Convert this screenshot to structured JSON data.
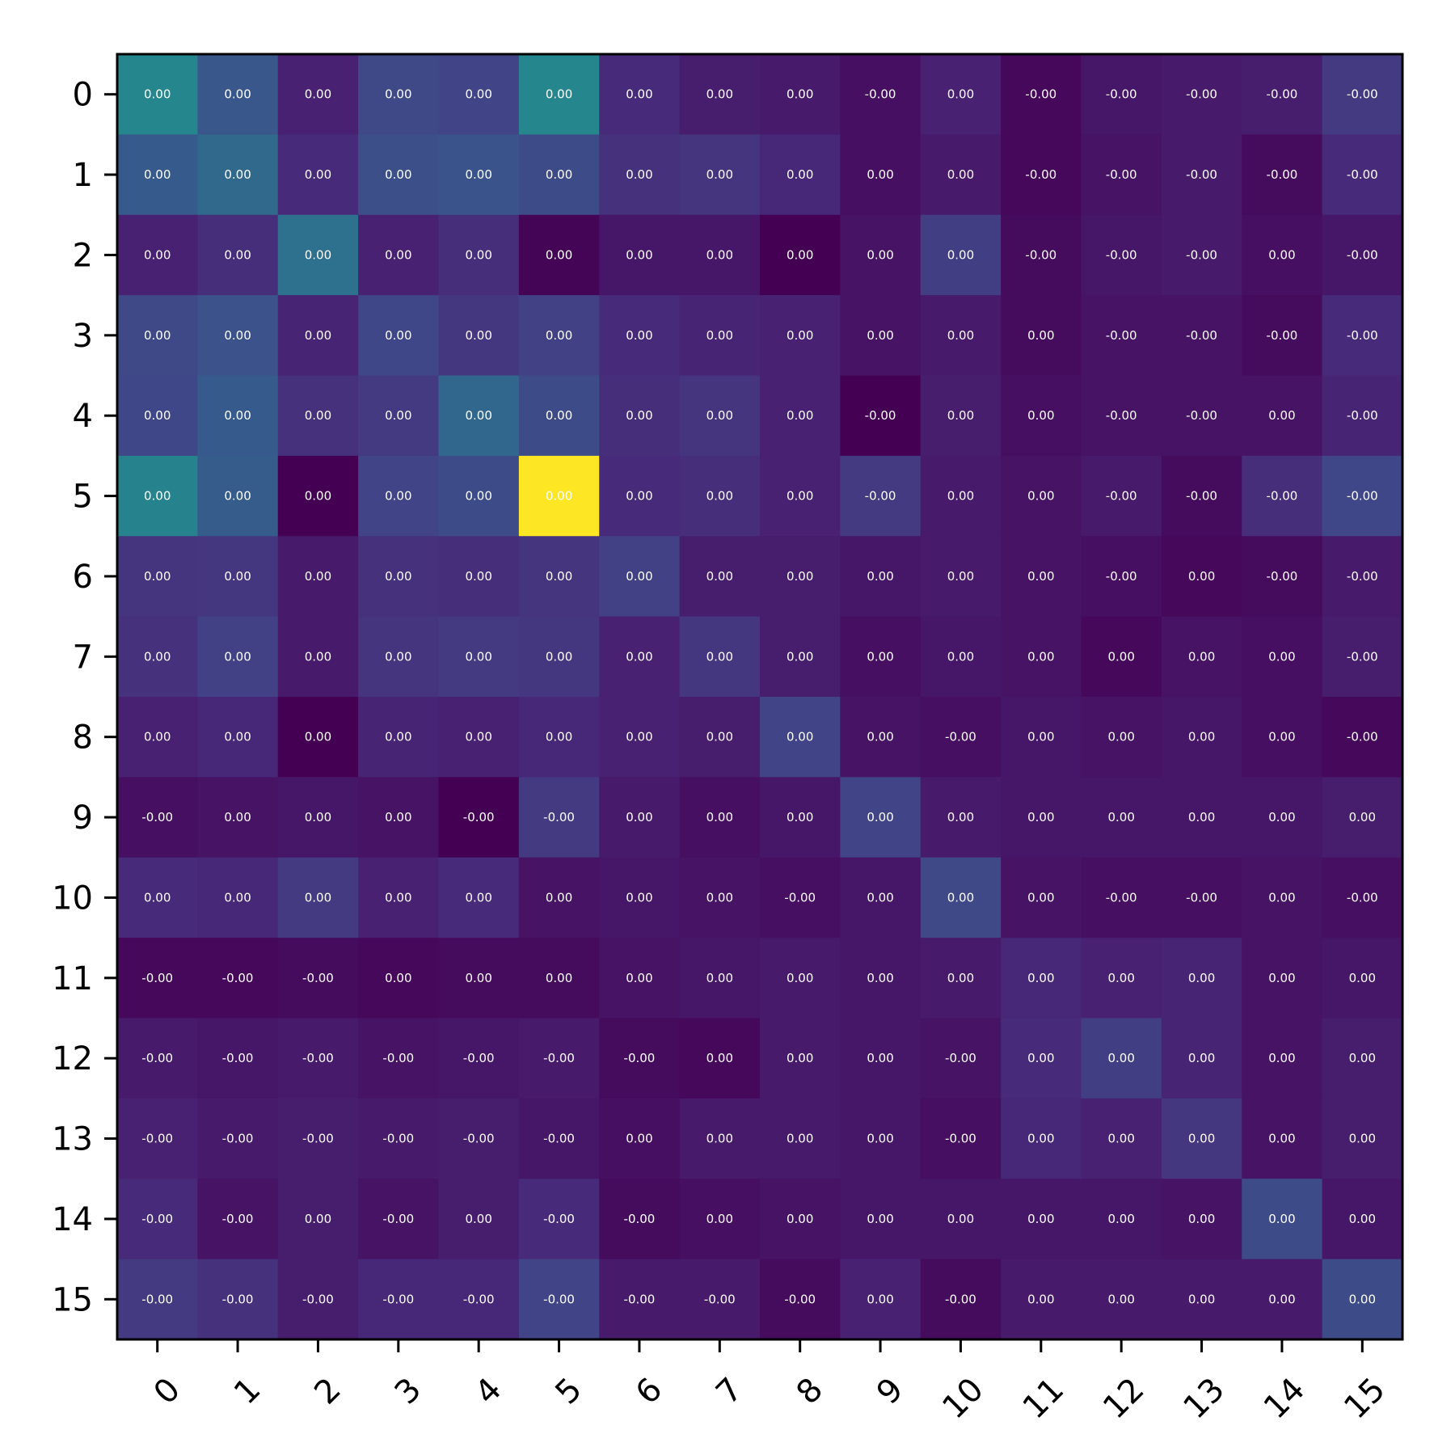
{
  "chart_data": {
    "type": "heatmap",
    "title": "",
    "xlabel": "",
    "ylabel": "",
    "grid": false,
    "colormap": "viridis",
    "x_categories": [
      "0",
      "1",
      "2",
      "3",
      "4",
      "5",
      "6",
      "7",
      "8",
      "9",
      "10",
      "11",
      "12",
      "13",
      "14",
      "15"
    ],
    "y_categories": [
      "0",
      "1",
      "2",
      "3",
      "4",
      "5",
      "6",
      "7",
      "8",
      "9",
      "10",
      "11",
      "12",
      "13",
      "14",
      "15"
    ],
    "intensity": [
      [
        0.46,
        0.27,
        0.09,
        0.22,
        0.2,
        0.46,
        0.12,
        0.08,
        0.07,
        0.04,
        0.09,
        0.02,
        0.06,
        0.07,
        0.08,
        0.17
      ],
      [
        0.28,
        0.34,
        0.12,
        0.24,
        0.26,
        0.23,
        0.14,
        0.15,
        0.11,
        0.04,
        0.07,
        0.02,
        0.05,
        0.07,
        0.03,
        0.12
      ],
      [
        0.09,
        0.13,
        0.37,
        0.09,
        0.13,
        0.01,
        0.06,
        0.06,
        0.0,
        0.05,
        0.18,
        0.03,
        0.06,
        0.07,
        0.04,
        0.06
      ],
      [
        0.22,
        0.25,
        0.1,
        0.21,
        0.16,
        0.19,
        0.12,
        0.1,
        0.09,
        0.05,
        0.07,
        0.03,
        0.05,
        0.05,
        0.03,
        0.12
      ],
      [
        0.21,
        0.28,
        0.14,
        0.17,
        0.33,
        0.23,
        0.13,
        0.15,
        0.09,
        0.0,
        0.08,
        0.04,
        0.05,
        0.05,
        0.05,
        0.1
      ],
      [
        0.44,
        0.29,
        0.0,
        0.2,
        0.23,
        1.0,
        0.12,
        0.13,
        0.09,
        0.17,
        0.07,
        0.05,
        0.07,
        0.03,
        0.13,
        0.21
      ],
      [
        0.15,
        0.16,
        0.07,
        0.14,
        0.13,
        0.15,
        0.19,
        0.08,
        0.08,
        0.06,
        0.07,
        0.05,
        0.04,
        0.02,
        0.03,
        0.07
      ],
      [
        0.14,
        0.19,
        0.07,
        0.15,
        0.17,
        0.16,
        0.09,
        0.16,
        0.08,
        0.04,
        0.06,
        0.05,
        0.02,
        0.05,
        0.04,
        0.08
      ],
      [
        0.09,
        0.11,
        0.0,
        0.1,
        0.09,
        0.11,
        0.09,
        0.08,
        0.2,
        0.05,
        0.04,
        0.06,
        0.05,
        0.06,
        0.04,
        0.02
      ],
      [
        0.04,
        0.05,
        0.06,
        0.05,
        0.0,
        0.17,
        0.07,
        0.04,
        0.06,
        0.2,
        0.07,
        0.06,
        0.06,
        0.06,
        0.06,
        0.08
      ],
      [
        0.12,
        0.11,
        0.17,
        0.09,
        0.12,
        0.05,
        0.06,
        0.05,
        0.04,
        0.06,
        0.22,
        0.05,
        0.04,
        0.04,
        0.05,
        0.04
      ],
      [
        0.02,
        0.02,
        0.03,
        0.02,
        0.03,
        0.03,
        0.05,
        0.06,
        0.07,
        0.06,
        0.07,
        0.11,
        0.09,
        0.1,
        0.05,
        0.06
      ],
      [
        0.07,
        0.06,
        0.07,
        0.05,
        0.06,
        0.07,
        0.03,
        0.02,
        0.07,
        0.06,
        0.05,
        0.12,
        0.18,
        0.1,
        0.05,
        0.08
      ],
      [
        0.09,
        0.07,
        0.08,
        0.07,
        0.08,
        0.06,
        0.04,
        0.07,
        0.07,
        0.06,
        0.04,
        0.11,
        0.09,
        0.16,
        0.05,
        0.08
      ],
      [
        0.12,
        0.05,
        0.08,
        0.05,
        0.08,
        0.12,
        0.03,
        0.04,
        0.05,
        0.06,
        0.06,
        0.06,
        0.06,
        0.05,
        0.23,
        0.06
      ],
      [
        0.17,
        0.14,
        0.08,
        0.11,
        0.11,
        0.2,
        0.07,
        0.07,
        0.03,
        0.09,
        0.03,
        0.07,
        0.07,
        0.07,
        0.07,
        0.23
      ]
    ],
    "cell_labels": [
      [
        "0.00",
        "0.00",
        "0.00",
        "0.00",
        "0.00",
        "0.00",
        "0.00",
        "0.00",
        "0.00",
        "-0.00",
        "0.00",
        "-0.00",
        "-0.00",
        "-0.00",
        "-0.00",
        "-0.00"
      ],
      [
        "0.00",
        "0.00",
        "0.00",
        "0.00",
        "0.00",
        "0.00",
        "0.00",
        "0.00",
        "0.00",
        "0.00",
        "0.00",
        "-0.00",
        "-0.00",
        "-0.00",
        "-0.00",
        "-0.00"
      ],
      [
        "0.00",
        "0.00",
        "0.00",
        "0.00",
        "0.00",
        "0.00",
        "0.00",
        "0.00",
        "0.00",
        "0.00",
        "0.00",
        "-0.00",
        "-0.00",
        "-0.00",
        "0.00",
        "-0.00"
      ],
      [
        "0.00",
        "0.00",
        "0.00",
        "0.00",
        "0.00",
        "0.00",
        "0.00",
        "0.00",
        "0.00",
        "0.00",
        "0.00",
        "0.00",
        "-0.00",
        "-0.00",
        "-0.00",
        "-0.00"
      ],
      [
        "0.00",
        "0.00",
        "0.00",
        "0.00",
        "0.00",
        "0.00",
        "0.00",
        "0.00",
        "0.00",
        "-0.00",
        "0.00",
        "0.00",
        "-0.00",
        "-0.00",
        "0.00",
        "-0.00"
      ],
      [
        "0.00",
        "0.00",
        "0.00",
        "0.00",
        "0.00",
        "0.00",
        "0.00",
        "0.00",
        "0.00",
        "-0.00",
        "0.00",
        "0.00",
        "-0.00",
        "-0.00",
        "-0.00",
        "-0.00"
      ],
      [
        "0.00",
        "0.00",
        "0.00",
        "0.00",
        "0.00",
        "0.00",
        "0.00",
        "0.00",
        "0.00",
        "0.00",
        "0.00",
        "0.00",
        "-0.00",
        "0.00",
        "-0.00",
        "-0.00"
      ],
      [
        "0.00",
        "0.00",
        "0.00",
        "0.00",
        "0.00",
        "0.00",
        "0.00",
        "0.00",
        "0.00",
        "0.00",
        "0.00",
        "0.00",
        "0.00",
        "0.00",
        "0.00",
        "-0.00"
      ],
      [
        "0.00",
        "0.00",
        "0.00",
        "0.00",
        "0.00",
        "0.00",
        "0.00",
        "0.00",
        "0.00",
        "0.00",
        "-0.00",
        "0.00",
        "0.00",
        "0.00",
        "0.00",
        "-0.00"
      ],
      [
        "-0.00",
        "0.00",
        "0.00",
        "0.00",
        "-0.00",
        "-0.00",
        "0.00",
        "0.00",
        "0.00",
        "0.00",
        "0.00",
        "0.00",
        "0.00",
        "0.00",
        "0.00",
        "0.00"
      ],
      [
        "0.00",
        "0.00",
        "0.00",
        "0.00",
        "0.00",
        "0.00",
        "0.00",
        "0.00",
        "-0.00",
        "0.00",
        "0.00",
        "0.00",
        "-0.00",
        "-0.00",
        "0.00",
        "-0.00"
      ],
      [
        "-0.00",
        "-0.00",
        "-0.00",
        "0.00",
        "0.00",
        "0.00",
        "0.00",
        "0.00",
        "0.00",
        "0.00",
        "0.00",
        "0.00",
        "0.00",
        "0.00",
        "0.00",
        "0.00"
      ],
      [
        "-0.00",
        "-0.00",
        "-0.00",
        "-0.00",
        "-0.00",
        "-0.00",
        "-0.00",
        "0.00",
        "0.00",
        "0.00",
        "-0.00",
        "0.00",
        "0.00",
        "0.00",
        "0.00",
        "0.00"
      ],
      [
        "-0.00",
        "-0.00",
        "-0.00",
        "-0.00",
        "-0.00",
        "-0.00",
        "0.00",
        "0.00",
        "0.00",
        "0.00",
        "-0.00",
        "0.00",
        "0.00",
        "0.00",
        "0.00",
        "0.00"
      ],
      [
        "-0.00",
        "-0.00",
        "0.00",
        "-0.00",
        "0.00",
        "-0.00",
        "-0.00",
        "0.00",
        "0.00",
        "0.00",
        "0.00",
        "0.00",
        "0.00",
        "0.00",
        "0.00",
        "0.00"
      ],
      [
        "-0.00",
        "-0.00",
        "-0.00",
        "-0.00",
        "-0.00",
        "-0.00",
        "-0.00",
        "-0.00",
        "-0.00",
        "0.00",
        "-0.00",
        "0.00",
        "0.00",
        "0.00",
        "0.00",
        "0.00"
      ]
    ]
  }
}
